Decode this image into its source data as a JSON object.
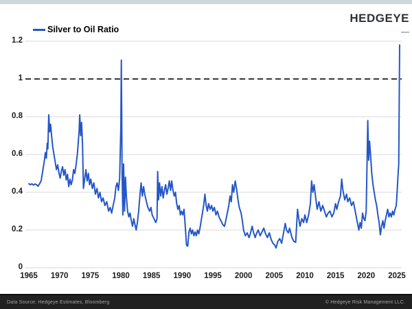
{
  "header": {
    "brand": "HEDGEYE"
  },
  "legend": {
    "label": "Silver to Oil Ratio"
  },
  "footer": {
    "left": "Data Source: Hedgeye Estimates, Bloomberg",
    "right": "© Hedgeye Risk Management LLC."
  },
  "colors": {
    "line": "#2456c7",
    "grid": "#d9d9d9",
    "reference_dash": "#1a1a1a",
    "top_strip": "#ccd8db",
    "footer_bg": "#212121",
    "footer_text": "#a6a6a6"
  },
  "chart_data": {
    "type": "line",
    "title": "Silver to Oil Ratio",
    "xlabel": "",
    "ylabel": "",
    "x_range": [
      1965,
      2025.7
    ],
    "y_range": [
      0,
      1.2
    ],
    "x_ticks": [
      1965,
      1970,
      1975,
      1980,
      1985,
      1990,
      1995,
      2000,
      2005,
      2010,
      2015,
      2020,
      2025
    ],
    "y_ticks": [
      0,
      0.2,
      0.4,
      0.6,
      0.8,
      1,
      1.2
    ],
    "y_tick_labels": [
      "0",
      "0.2",
      "0.4",
      "0.6",
      "0.8",
      "1",
      "1.2"
    ],
    "grid": "horizontal",
    "legend_position": "top-left",
    "reference_line": {
      "value": 1.0,
      "style": "dashed",
      "color": "#1a1a1a"
    },
    "series": [
      {
        "name": "Silver to Oil Ratio",
        "color": "#2456c7",
        "points": [
          [
            1965.0,
            0.445
          ],
          [
            1965.25,
            0.44
          ],
          [
            1965.5,
            0.445
          ],
          [
            1965.75,
            0.438
          ],
          [
            1966.0,
            0.444
          ],
          [
            1966.25,
            0.44
          ],
          [
            1966.5,
            0.432
          ],
          [
            1966.75,
            0.445
          ],
          [
            1967.0,
            0.46
          ],
          [
            1967.25,
            0.51
          ],
          [
            1967.5,
            0.56
          ],
          [
            1967.7,
            0.61
          ],
          [
            1967.85,
            0.58
          ],
          [
            1968.0,
            0.66
          ],
          [
            1968.1,
            0.63
          ],
          [
            1968.25,
            0.81
          ],
          [
            1968.4,
            0.72
          ],
          [
            1968.55,
            0.76
          ],
          [
            1968.7,
            0.7
          ],
          [
            1968.9,
            0.64
          ],
          [
            1969.1,
            0.6
          ],
          [
            1969.3,
            0.56
          ],
          [
            1969.5,
            0.52
          ],
          [
            1969.7,
            0.545
          ],
          [
            1969.9,
            0.505
          ],
          [
            1970.1,
            0.475
          ],
          [
            1970.3,
            0.51
          ],
          [
            1970.5,
            0.535
          ],
          [
            1970.7,
            0.49
          ],
          [
            1970.9,
            0.52
          ],
          [
            1971.1,
            0.465
          ],
          [
            1971.3,
            0.495
          ],
          [
            1971.5,
            0.43
          ],
          [
            1971.7,
            0.47
          ],
          [
            1971.9,
            0.44
          ],
          [
            1972.1,
            0.465
          ],
          [
            1972.3,
            0.52
          ],
          [
            1972.5,
            0.5
          ],
          [
            1972.7,
            0.545
          ],
          [
            1972.9,
            0.6
          ],
          [
            1973.05,
            0.66
          ],
          [
            1973.2,
            0.73
          ],
          [
            1973.3,
            0.81
          ],
          [
            1973.45,
            0.7
          ],
          [
            1973.6,
            0.77
          ],
          [
            1973.75,
            0.65
          ],
          [
            1973.9,
            0.42
          ],
          [
            1974.1,
            0.47
          ],
          [
            1974.3,
            0.52
          ],
          [
            1974.5,
            0.46
          ],
          [
            1974.7,
            0.5
          ],
          [
            1974.9,
            0.44
          ],
          [
            1975.1,
            0.47
          ],
          [
            1975.35,
            0.42
          ],
          [
            1975.6,
            0.45
          ],
          [
            1975.85,
            0.39
          ],
          [
            1976.1,
            0.42
          ],
          [
            1976.35,
            0.37
          ],
          [
            1976.6,
            0.4
          ],
          [
            1976.85,
            0.35
          ],
          [
            1977.1,
            0.37
          ],
          [
            1977.4,
            0.33
          ],
          [
            1977.7,
            0.35
          ],
          [
            1978.0,
            0.3
          ],
          [
            1978.25,
            0.32
          ],
          [
            1978.5,
            0.29
          ],
          [
            1978.75,
            0.33
          ],
          [
            1979.0,
            0.37
          ],
          [
            1979.2,
            0.43
          ],
          [
            1979.4,
            0.45
          ],
          [
            1979.6,
            0.41
          ],
          [
            1979.8,
            0.47
          ],
          [
            1980.0,
            0.75
          ],
          [
            1980.08,
            1.1
          ],
          [
            1980.2,
            0.5
          ],
          [
            1980.32,
            0.28
          ],
          [
            1980.45,
            0.55
          ],
          [
            1980.6,
            0.3
          ],
          [
            1980.75,
            0.48
          ],
          [
            1980.9,
            0.38
          ],
          [
            1981.1,
            0.3
          ],
          [
            1981.3,
            0.27
          ],
          [
            1981.5,
            0.29
          ],
          [
            1981.7,
            0.25
          ],
          [
            1981.9,
            0.22
          ],
          [
            1982.1,
            0.26
          ],
          [
            1982.3,
            0.23
          ],
          [
            1982.5,
            0.2
          ],
          [
            1982.7,
            0.24
          ],
          [
            1982.9,
            0.3
          ],
          [
            1983.1,
            0.38
          ],
          [
            1983.3,
            0.45
          ],
          [
            1983.5,
            0.38
          ],
          [
            1983.7,
            0.43
          ],
          [
            1983.9,
            0.39
          ],
          [
            1984.1,
            0.36
          ],
          [
            1984.4,
            0.32
          ],
          [
            1984.7,
            0.3
          ],
          [
            1984.9,
            0.32
          ],
          [
            1985.1,
            0.28
          ],
          [
            1985.4,
            0.26
          ],
          [
            1985.7,
            0.24
          ],
          [
            1985.9,
            0.26
          ],
          [
            1986.0,
            0.51
          ],
          [
            1986.15,
            0.36
          ],
          [
            1986.3,
            0.45
          ],
          [
            1986.5,
            0.38
          ],
          [
            1986.7,
            0.43
          ],
          [
            1986.9,
            0.37
          ],
          [
            1987.1,
            0.41
          ],
          [
            1987.3,
            0.44
          ],
          [
            1987.5,
            0.39
          ],
          [
            1987.7,
            0.42
          ],
          [
            1987.9,
            0.46
          ],
          [
            1988.1,
            0.41
          ],
          [
            1988.3,
            0.46
          ],
          [
            1988.5,
            0.41
          ],
          [
            1988.7,
            0.38
          ],
          [
            1988.9,
            0.4
          ],
          [
            1989.1,
            0.34
          ],
          [
            1989.3,
            0.31
          ],
          [
            1989.5,
            0.33
          ],
          [
            1989.7,
            0.28
          ],
          [
            1989.9,
            0.3
          ],
          [
            1990.1,
            0.28
          ],
          [
            1990.3,
            0.31
          ],
          [
            1990.5,
            0.22
          ],
          [
            1990.7,
            0.12
          ],
          [
            1990.9,
            0.115
          ],
          [
            1991.1,
            0.19
          ],
          [
            1991.3,
            0.21
          ],
          [
            1991.5,
            0.18
          ],
          [
            1991.7,
            0.2
          ],
          [
            1991.9,
            0.17
          ],
          [
            1992.1,
            0.19
          ],
          [
            1992.3,
            0.17
          ],
          [
            1992.5,
            0.2
          ],
          [
            1992.7,
            0.18
          ],
          [
            1992.9,
            0.21
          ],
          [
            1993.1,
            0.25
          ],
          [
            1993.3,
            0.29
          ],
          [
            1993.5,
            0.33
          ],
          [
            1993.7,
            0.39
          ],
          [
            1993.9,
            0.33
          ],
          [
            1994.1,
            0.3
          ],
          [
            1994.3,
            0.34
          ],
          [
            1994.55,
            0.31
          ],
          [
            1994.8,
            0.33
          ],
          [
            1995.0,
            0.3
          ],
          [
            1995.25,
            0.32
          ],
          [
            1995.5,
            0.28
          ],
          [
            1995.75,
            0.3
          ],
          [
            1996.0,
            0.27
          ],
          [
            1996.3,
            0.25
          ],
          [
            1996.6,
            0.23
          ],
          [
            1996.9,
            0.22
          ],
          [
            1997.1,
            0.25
          ],
          [
            1997.35,
            0.29
          ],
          [
            1997.6,
            0.33
          ],
          [
            1997.8,
            0.38
          ],
          [
            1998.0,
            0.35
          ],
          [
            1998.2,
            0.44
          ],
          [
            1998.4,
            0.4
          ],
          [
            1998.65,
            0.46
          ],
          [
            1998.9,
            0.41
          ],
          [
            1999.1,
            0.36
          ],
          [
            1999.3,
            0.32
          ],
          [
            1999.6,
            0.29
          ],
          [
            1999.8,
            0.25
          ],
          [
            2000.0,
            0.2
          ],
          [
            2000.3,
            0.17
          ],
          [
            2000.6,
            0.185
          ],
          [
            2000.9,
            0.16
          ],
          [
            2001.1,
            0.18
          ],
          [
            2001.4,
            0.22
          ],
          [
            2001.6,
            0.19
          ],
          [
            2001.9,
            0.16
          ],
          [
            2002.1,
            0.18
          ],
          [
            2002.4,
            0.2
          ],
          [
            2002.7,
            0.17
          ],
          [
            2003.0,
            0.19
          ],
          [
            2003.3,
            0.21
          ],
          [
            2003.6,
            0.18
          ],
          [
            2003.9,
            0.16
          ],
          [
            2004.2,
            0.185
          ],
          [
            2004.5,
            0.15
          ],
          [
            2004.8,
            0.13
          ],
          [
            2005.1,
            0.12
          ],
          [
            2005.3,
            0.105
          ],
          [
            2005.6,
            0.14
          ],
          [
            2005.9,
            0.155
          ],
          [
            2006.2,
            0.13
          ],
          [
            2006.5,
            0.18
          ],
          [
            2006.8,
            0.235
          ],
          [
            2007.0,
            0.2
          ],
          [
            2007.3,
            0.185
          ],
          [
            2007.5,
            0.21
          ],
          [
            2007.9,
            0.16
          ],
          [
            2008.2,
            0.14
          ],
          [
            2008.5,
            0.135
          ],
          [
            2008.8,
            0.31
          ],
          [
            2009.0,
            0.26
          ],
          [
            2009.2,
            0.22
          ],
          [
            2009.5,
            0.26
          ],
          [
            2009.8,
            0.24
          ],
          [
            2010.0,
            0.28
          ],
          [
            2010.3,
            0.24
          ],
          [
            2010.6,
            0.28
          ],
          [
            2010.9,
            0.34
          ],
          [
            2011.1,
            0.46
          ],
          [
            2011.3,
            0.4
          ],
          [
            2011.5,
            0.44
          ],
          [
            2011.8,
            0.36
          ],
          [
            2012.0,
            0.31
          ],
          [
            2012.3,
            0.35
          ],
          [
            2012.6,
            0.3
          ],
          [
            2012.9,
            0.33
          ],
          [
            2013.2,
            0.3
          ],
          [
            2013.5,
            0.27
          ],
          [
            2013.8,
            0.29
          ],
          [
            2014.1,
            0.3
          ],
          [
            2014.4,
            0.27
          ],
          [
            2014.7,
            0.29
          ],
          [
            2015.0,
            0.34
          ],
          [
            2015.2,
            0.31
          ],
          [
            2015.5,
            0.35
          ],
          [
            2015.8,
            0.38
          ],
          [
            2016.0,
            0.47
          ],
          [
            2016.2,
            0.41
          ],
          [
            2016.5,
            0.36
          ],
          [
            2016.8,
            0.39
          ],
          [
            2017.0,
            0.35
          ],
          [
            2017.3,
            0.37
          ],
          [
            2017.6,
            0.33
          ],
          [
            2017.9,
            0.35
          ],
          [
            2018.2,
            0.3
          ],
          [
            2018.5,
            0.25
          ],
          [
            2018.8,
            0.2
          ],
          [
            2019.0,
            0.24
          ],
          [
            2019.2,
            0.21
          ],
          [
            2019.4,
            0.29
          ],
          [
            2019.6,
            0.26
          ],
          [
            2019.8,
            0.25
          ],
          [
            2020.0,
            0.3
          ],
          [
            2020.25,
            0.78
          ],
          [
            2020.4,
            0.57
          ],
          [
            2020.55,
            0.67
          ],
          [
            2020.7,
            0.6
          ],
          [
            2020.9,
            0.5
          ],
          [
            2021.1,
            0.44
          ],
          [
            2021.3,
            0.4
          ],
          [
            2021.5,
            0.36
          ],
          [
            2021.7,
            0.33
          ],
          [
            2021.9,
            0.28
          ],
          [
            2022.1,
            0.24
          ],
          [
            2022.3,
            0.175
          ],
          [
            2022.5,
            0.22
          ],
          [
            2022.7,
            0.25
          ],
          [
            2022.9,
            0.21
          ],
          [
            2023.1,
            0.25
          ],
          [
            2023.3,
            0.28
          ],
          [
            2023.5,
            0.31
          ],
          [
            2023.7,
            0.27
          ],
          [
            2023.9,
            0.29
          ],
          [
            2024.1,
            0.27
          ],
          [
            2024.3,
            0.3
          ],
          [
            2024.5,
            0.28
          ],
          [
            2024.7,
            0.31
          ],
          [
            2024.9,
            0.33
          ],
          [
            2025.0,
            0.38
          ],
          [
            2025.1,
            0.44
          ],
          [
            2025.2,
            0.5
          ],
          [
            2025.3,
            0.55
          ],
          [
            2025.45,
            1.18
          ]
        ]
      }
    ]
  }
}
